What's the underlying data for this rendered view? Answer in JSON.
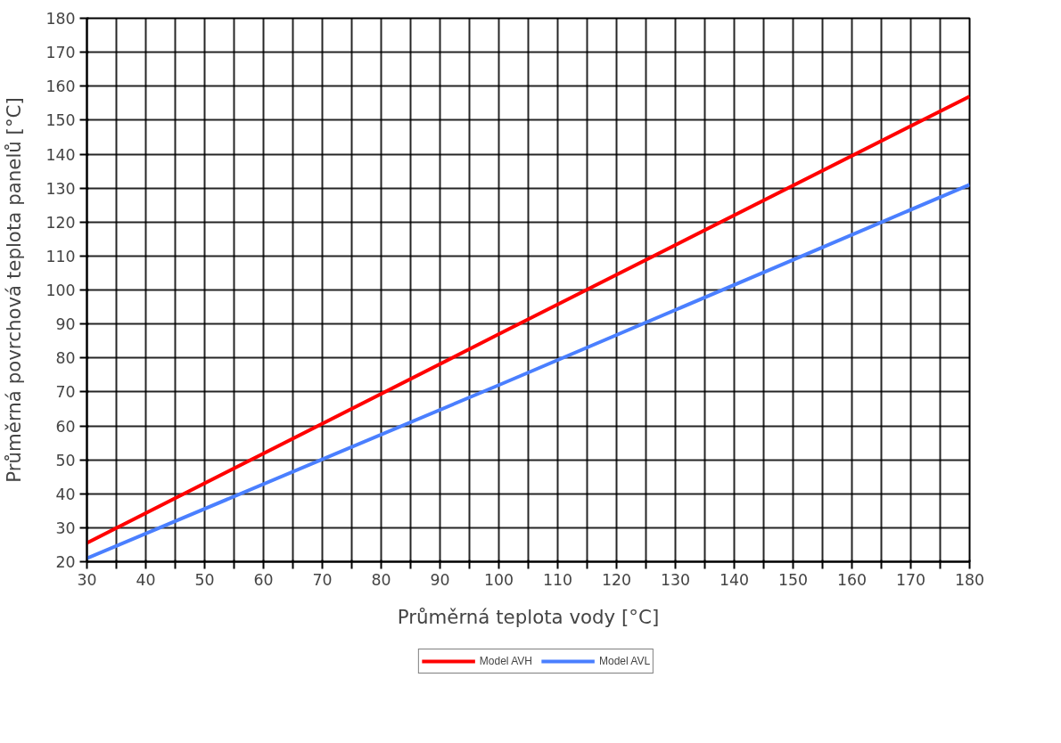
{
  "chart_data": {
    "type": "line",
    "xlabel": "Průměrná teplota vody [°C]",
    "ylabel": "Průměrná povrchová teplota panelů [°C]",
    "x": [
      30,
      100,
      180
    ],
    "series": [
      {
        "name": "Model AVH",
        "color": "#ff0000",
        "values": [
          25.5,
          87,
          157
        ]
      },
      {
        "name": "Model AVL",
        "color": "#4a7fff",
        "values": [
          21,
          72,
          131
        ]
      }
    ],
    "xlim": [
      30,
      180
    ],
    "ylim": [
      20,
      180
    ],
    "xticks": [
      30,
      {
        "value": 35,
        "label": null
      },
      40,
      {
        "value": 45,
        "label": null
      },
      50,
      {
        "value": 55,
        "label": null
      },
      60,
      {
        "value": 65,
        "label": null
      },
      70,
      {
        "value": 75,
        "label": null
      },
      80,
      {
        "value": 85,
        "label": null
      },
      90,
      {
        "value": 95,
        "label": null
      },
      100,
      {
        "value": 105,
        "label": null
      },
      110,
      {
        "value": 115,
        "label": null
      },
      120,
      {
        "value": 125,
        "label": null
      },
      130,
      {
        "value": 135,
        "label": null
      },
      140,
      {
        "value": 145,
        "label": null
      },
      150,
      {
        "value": 155,
        "label": null
      },
      160,
      {
        "value": 165,
        "label": null
      },
      170,
      {
        "value": 175,
        "label": null
      },
      180
    ],
    "yticks": [
      20,
      30,
      40,
      50,
      60,
      70,
      80,
      90,
      100,
      110,
      120,
      130,
      140,
      150,
      160,
      170,
      180
    ],
    "grid": true,
    "legend": "bottom",
    "marker": "none",
    "line_style": "solid"
  }
}
